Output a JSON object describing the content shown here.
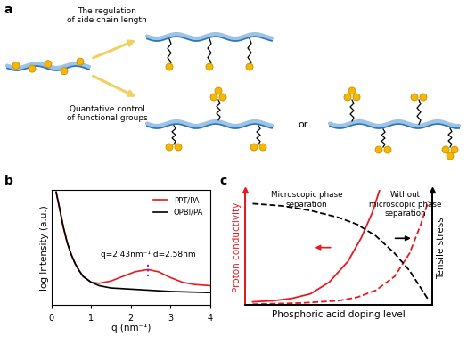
{
  "diagram": {
    "panel_label": "a",
    "labels": [
      "The regulation\nof side chain length",
      "Quantative control\nof functional groups"
    ],
    "connector": "or"
  },
  "chart_data": [
    {
      "panel_label": "b",
      "type": "line",
      "x_label": "q (nm⁻¹)",
      "y_label": "log Intensity (a.u.)",
      "xlim": [
        0,
        4
      ],
      "xticks": [
        0,
        1,
        2,
        3,
        4
      ],
      "ylim": [
        0,
        10
      ],
      "tick_labels": "x",
      "legend": "upper right",
      "series": [
        {
          "name": "PPT/PA",
          "color": "#e8191f",
          "x": [
            0.12,
            0.2,
            0.3,
            0.4,
            0.5,
            0.6,
            0.7,
            0.8,
            1.0,
            1.2,
            1.5,
            1.8,
            2.1,
            2.43,
            2.7,
            3.0,
            3.3,
            3.6,
            4.0
          ],
          "values": [
            9.8,
            8.5,
            6.8,
            5.4,
            4.4,
            3.6,
            3.0,
            2.5,
            2.0,
            1.9,
            2.1,
            2.5,
            2.9,
            3.1,
            2.9,
            2.4,
            2.0,
            1.8,
            1.7
          ]
        },
        {
          "name": "OPBI/PA",
          "color": "#000000",
          "x": [
            0.12,
            0.2,
            0.3,
            0.4,
            0.5,
            0.6,
            0.7,
            0.8,
            1.0,
            1.2,
            1.5,
            2.0,
            2.5,
            3.0,
            3.5,
            4.0
          ],
          "values": [
            9.8,
            8.5,
            6.8,
            5.4,
            4.4,
            3.6,
            3.0,
            2.5,
            2.0,
            1.7,
            1.5,
            1.4,
            1.3,
            1.2,
            1.15,
            1.1
          ]
        }
      ],
      "annotation": {
        "text": "q=2.43nm⁻¹ d=2.58nm",
        "x": 2.43,
        "y": 3.1,
        "color": "#7b2fbe"
      }
    },
    {
      "panel_label": "c",
      "type": "line",
      "x_label": "Phosphoric acid doping level",
      "y_label": "Proton conductivity",
      "y2_label": "Tensile stress",
      "xlim": [
        0,
        1
      ],
      "ylim": [
        0,
        1
      ],
      "y2lim": [
        0,
        1
      ],
      "tick_labels": false,
      "series": [
        {
          "color": "#e8191f",
          "line_style": "solid",
          "x": [
            0.04,
            0.15,
            0.25,
            0.35,
            0.45,
            0.55,
            0.62,
            0.68,
            0.72
          ],
          "values": [
            0.03,
            0.04,
            0.06,
            0.1,
            0.2,
            0.38,
            0.58,
            0.8,
            1.0
          ]
        },
        {
          "color": "#e8191f",
          "line_style": "dashed",
          "x": [
            0.04,
            0.3,
            0.5,
            0.6,
            0.7,
            0.8,
            0.88,
            0.94,
            0.98
          ],
          "values": [
            0.01,
            0.02,
            0.04,
            0.07,
            0.13,
            0.25,
            0.45,
            0.7,
            0.9
          ]
        },
        {
          "color": "#000000",
          "line_style": "dashed",
          "axis": "y2",
          "x": [
            0.04,
            0.2,
            0.35,
            0.5,
            0.6,
            0.7,
            0.8,
            0.88,
            0.94,
            0.98
          ],
          "values": [
            0.88,
            0.86,
            0.82,
            0.76,
            0.7,
            0.6,
            0.45,
            0.3,
            0.15,
            0.05
          ]
        }
      ],
      "annotations": [
        "Microscopic phase\nseparation",
        "Without\nmicroscopic phase\nseparation"
      ]
    }
  ]
}
